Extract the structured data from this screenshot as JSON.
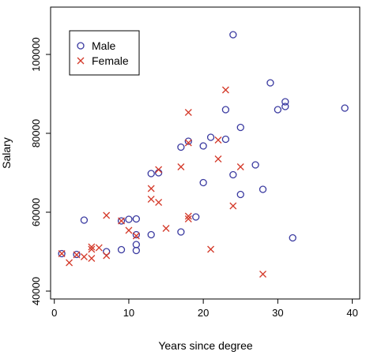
{
  "chart_data": {
    "type": "scatter",
    "title": "",
    "xlabel": "Years since degree",
    "ylabel": "Salary",
    "xlim": [
      -0.5,
      41
    ],
    "ylim": [
      38000,
      112000
    ],
    "xticks": [
      0,
      10,
      20,
      30,
      40
    ],
    "yticks": [
      40000,
      60000,
      80000,
      100000
    ],
    "xtick_labels": [
      "0",
      "10",
      "20",
      "30",
      "40"
    ],
    "ytick_labels": [
      "40000",
      "60000",
      "80000",
      "100000"
    ],
    "grid": false,
    "legend_position": "top-left",
    "series": [
      {
        "name": "Male",
        "marker": "circle",
        "color": "#3a3aa0",
        "points": [
          [
            1,
            49500
          ],
          [
            3,
            49300
          ],
          [
            4,
            58000
          ],
          [
            7,
            50000
          ],
          [
            9,
            50500
          ],
          [
            9,
            57800
          ],
          [
            10,
            58200
          ],
          [
            11,
            58300
          ],
          [
            11,
            50300
          ],
          [
            11,
            51800
          ],
          [
            11,
            54300
          ],
          [
            13,
            54300
          ],
          [
            13,
            69800
          ],
          [
            14,
            70000
          ],
          [
            17,
            55000
          ],
          [
            17,
            76500
          ],
          [
            18,
            78000
          ],
          [
            19,
            58800
          ],
          [
            20,
            67500
          ],
          [
            20,
            76800
          ],
          [
            21,
            79000
          ],
          [
            23,
            78500
          ],
          [
            23,
            86000
          ],
          [
            24,
            105000
          ],
          [
            24,
            69500
          ],
          [
            25,
            64500
          ],
          [
            25,
            81500
          ],
          [
            27,
            72000
          ],
          [
            28,
            65800
          ],
          [
            29,
            92800
          ],
          [
            30,
            86000
          ],
          [
            31,
            88000
          ],
          [
            31,
            86800
          ],
          [
            32,
            53500
          ],
          [
            39,
            86400
          ]
        ]
      },
      {
        "name": "Female",
        "marker": "cross",
        "color": "#d43a2a",
        "points": [
          [
            1,
            49500
          ],
          [
            2,
            47200
          ],
          [
            3,
            49200
          ],
          [
            4,
            48700
          ],
          [
            5,
            51200
          ],
          [
            5,
            50600
          ],
          [
            5,
            48300
          ],
          [
            6,
            51000
          ],
          [
            7,
            59200
          ],
          [
            7,
            49000
          ],
          [
            9,
            57800
          ],
          [
            10,
            55400
          ],
          [
            11,
            54000
          ],
          [
            13,
            66000
          ],
          [
            13,
            63300
          ],
          [
            14,
            62500
          ],
          [
            14,
            70800
          ],
          [
            15,
            55900
          ],
          [
            17,
            71500
          ],
          [
            18,
            85300
          ],
          [
            18,
            77600
          ],
          [
            18,
            59000
          ],
          [
            18,
            58300
          ],
          [
            21,
            50600
          ],
          [
            22,
            78300
          ],
          [
            22,
            73500
          ],
          [
            23,
            91000
          ],
          [
            24,
            61600
          ],
          [
            25,
            71500
          ],
          [
            28,
            44300
          ]
        ]
      }
    ]
  }
}
